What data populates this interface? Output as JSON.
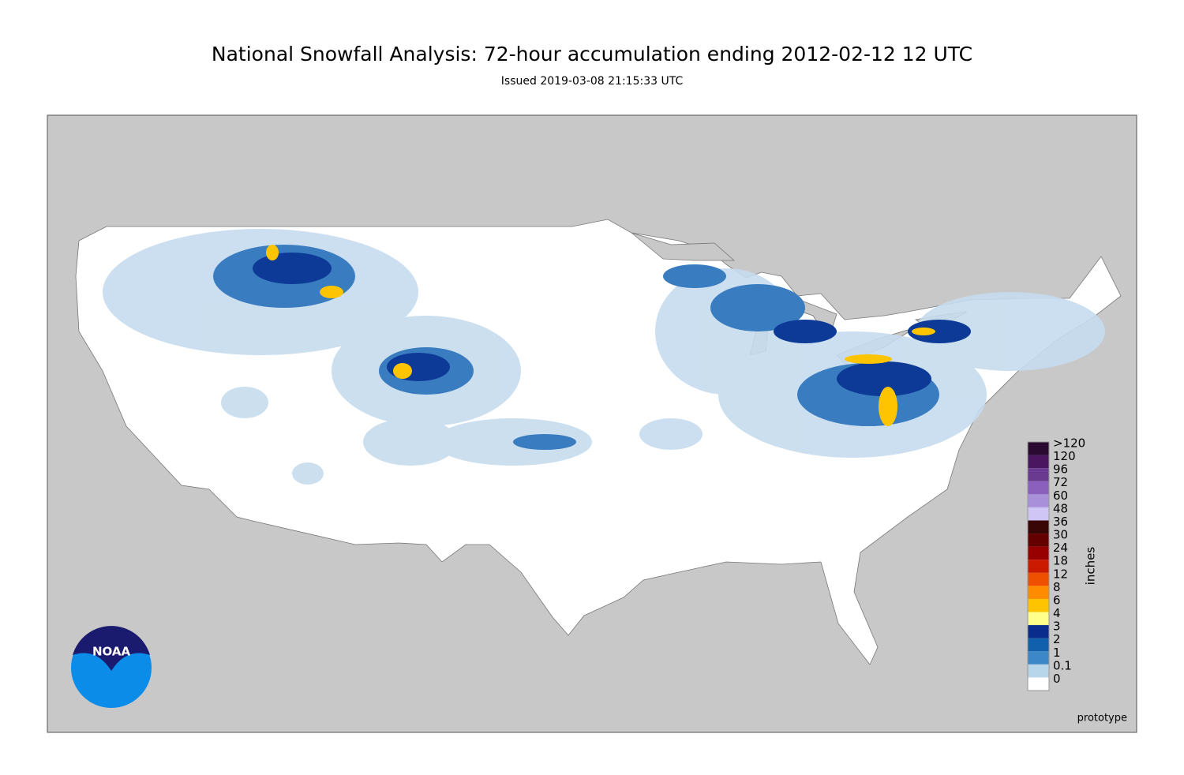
{
  "title": "National Snowfall Analysis: 72-hour accumulation ending 2012-02-12 12 UTC",
  "subtitle": "Issued 2019-03-08 21:15:33 UTC",
  "legend": {
    "title": "inches",
    "entries": [
      {
        "label": ">120",
        "color": "#2a0a30"
      },
      {
        "label": "120",
        "color": "#4b1660"
      },
      {
        "label": "96",
        "color": "#6a3a90"
      },
      {
        "label": "72",
        "color": "#8a60bc"
      },
      {
        "label": "60",
        "color": "#a890db"
      },
      {
        "label": "48",
        "color": "#cfc6f5"
      },
      {
        "label": "36",
        "color": "#3a0505"
      },
      {
        "label": "30",
        "color": "#650000"
      },
      {
        "label": "24",
        "color": "#980000"
      },
      {
        "label": "18",
        "color": "#cc1a00"
      },
      {
        "label": "12",
        "color": "#ee5000"
      },
      {
        "label": "8",
        "color": "#ff8c00"
      },
      {
        "label": "6",
        "color": "#ffc400"
      },
      {
        "label": "4",
        "color": "#ffff8c"
      },
      {
        "label": "3",
        "color": "#0a2c8c"
      },
      {
        "label": "2",
        "color": "#1060ad"
      },
      {
        "label": "1",
        "color": "#3b87c8"
      },
      {
        "label": "0.1",
        "color": "#b8d6ea"
      },
      {
        "label": "0",
        "color": "#ffffff"
      }
    ]
  },
  "note": "prototype",
  "logo_text": "NOAA"
}
